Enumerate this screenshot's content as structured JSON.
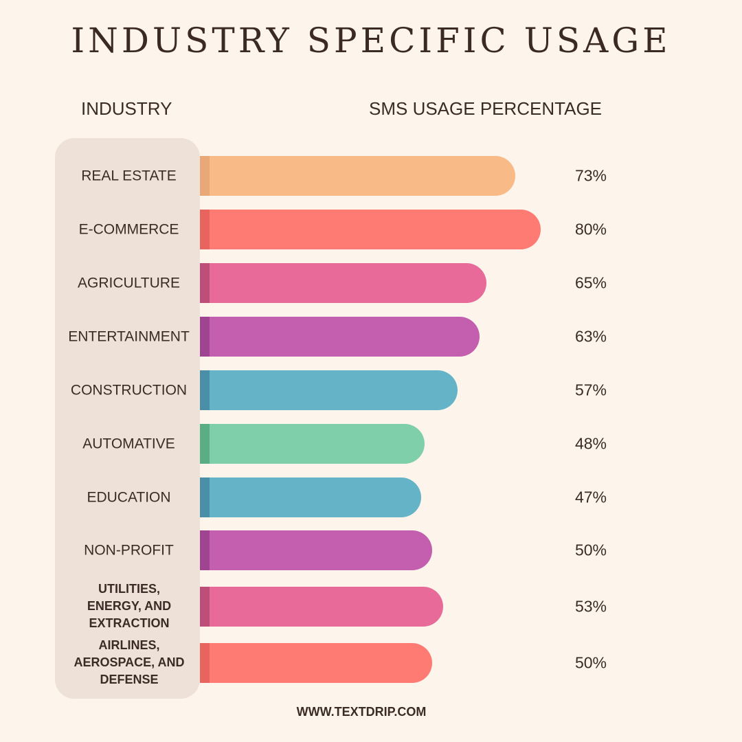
{
  "chart_data": {
    "type": "bar",
    "orientation": "horizontal",
    "title": "INDUSTRY SPECIFIC USAGE",
    "category_header": "INDUSTRY",
    "value_header": "SMS USAGE PERCENTAGE",
    "categories": [
      "REAL ESTATE",
      "E-COMMERCE",
      "AGRICULTURE",
      "ENTERTAINMENT",
      "CONSTRUCTION",
      "AUTOMATIVE",
      "EDUCATION",
      "NON-PROFIT",
      "UTILITIES, ENERGY, AND EXTRACTION",
      "AIRLINES, AEROSPACE, AND DEFENSE"
    ],
    "values": [
      73,
      80,
      65,
      63,
      57,
      48,
      47,
      50,
      53,
      50
    ],
    "value_labels": [
      "73%",
      "80%",
      "65%",
      "63%",
      "57%",
      "48%",
      "47%",
      "50%",
      "53%",
      "50%"
    ],
    "colors": [
      "#F8BA87",
      "#FE7B74",
      "#E86A98",
      "#C45EAE",
      "#65B3C7",
      "#7FD0AA",
      "#65B3C7",
      "#C45EAE",
      "#E86A98",
      "#FE7B74"
    ],
    "accent_colors": [
      "#E8A878",
      "#E8645E",
      "#BD4E7A",
      "#9E4490",
      "#4A8EA8",
      "#5BAE84",
      "#4A8EA8",
      "#9E4490",
      "#BD4E7A",
      "#E8645E"
    ],
    "unit": "%",
    "grid": false,
    "legend": "none"
  },
  "footer": "WWW.TEXTDRIP.COM"
}
